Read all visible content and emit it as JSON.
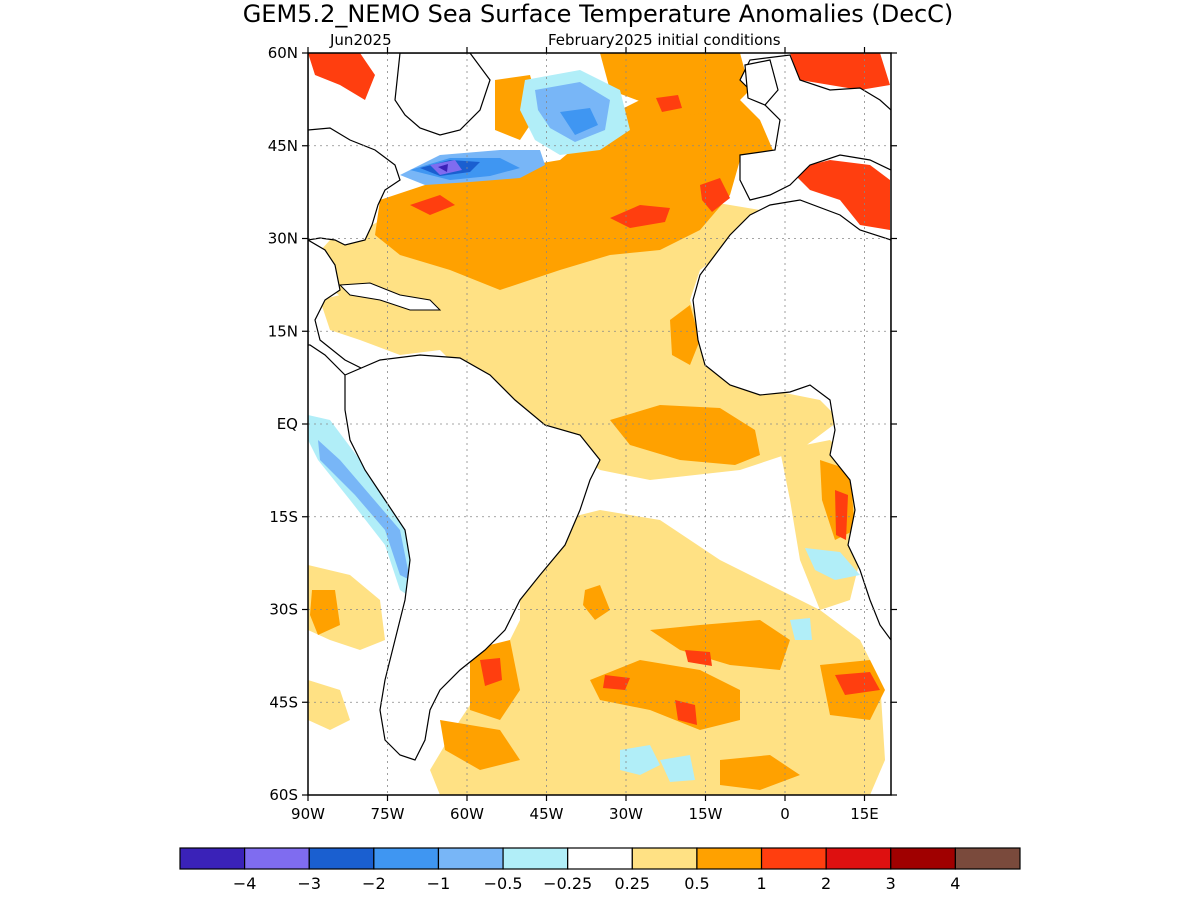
{
  "title": "GEM5.2_NEMO Sea Surface Temperature Anomalies (DecC)",
  "subtitle_left": "Jun2025",
  "subtitle_right": "February2025 initial conditions",
  "map": {
    "lon_range": [
      -90,
      20
    ],
    "lat_range": [
      -60,
      60
    ],
    "lat_ticks": [
      {
        "value": 60,
        "label": "60N"
      },
      {
        "value": 45,
        "label": "45N"
      },
      {
        "value": 30,
        "label": "30N"
      },
      {
        "value": 15,
        "label": "15N"
      },
      {
        "value": 0,
        "label": "EQ"
      },
      {
        "value": -15,
        "label": "15S"
      },
      {
        "value": -30,
        "label": "30S"
      },
      {
        "value": -45,
        "label": "45S"
      },
      {
        "value": -60,
        "label": "60S"
      }
    ],
    "lon_ticks": [
      {
        "value": -90,
        "label": "90W"
      },
      {
        "value": -75,
        "label": "75W"
      },
      {
        "value": -60,
        "label": "60W"
      },
      {
        "value": -45,
        "label": "45W"
      },
      {
        "value": -30,
        "label": "30W"
      },
      {
        "value": -15,
        "label": "15W"
      },
      {
        "value": 0,
        "label": "0"
      },
      {
        "value": 15,
        "label": "15E"
      }
    ],
    "grid": true,
    "gridline_style": "dotted"
  },
  "colorbar": {
    "colors": [
      "#3a22b8",
      "#7f6cf0",
      "#1a5fd0",
      "#3f96f2",
      "#78b6f7",
      "#b1eef8",
      "#ffffff",
      "#ffe184",
      "#ffa100",
      "#ff3e0f",
      "#de1010",
      "#a00000",
      "#7a4a3c"
    ],
    "labels": [
      "-4",
      "-3",
      "-2",
      "-1",
      "-0.5",
      "-0.25",
      "0.25",
      "0.5",
      "1",
      "2",
      "3",
      "4"
    ]
  }
}
